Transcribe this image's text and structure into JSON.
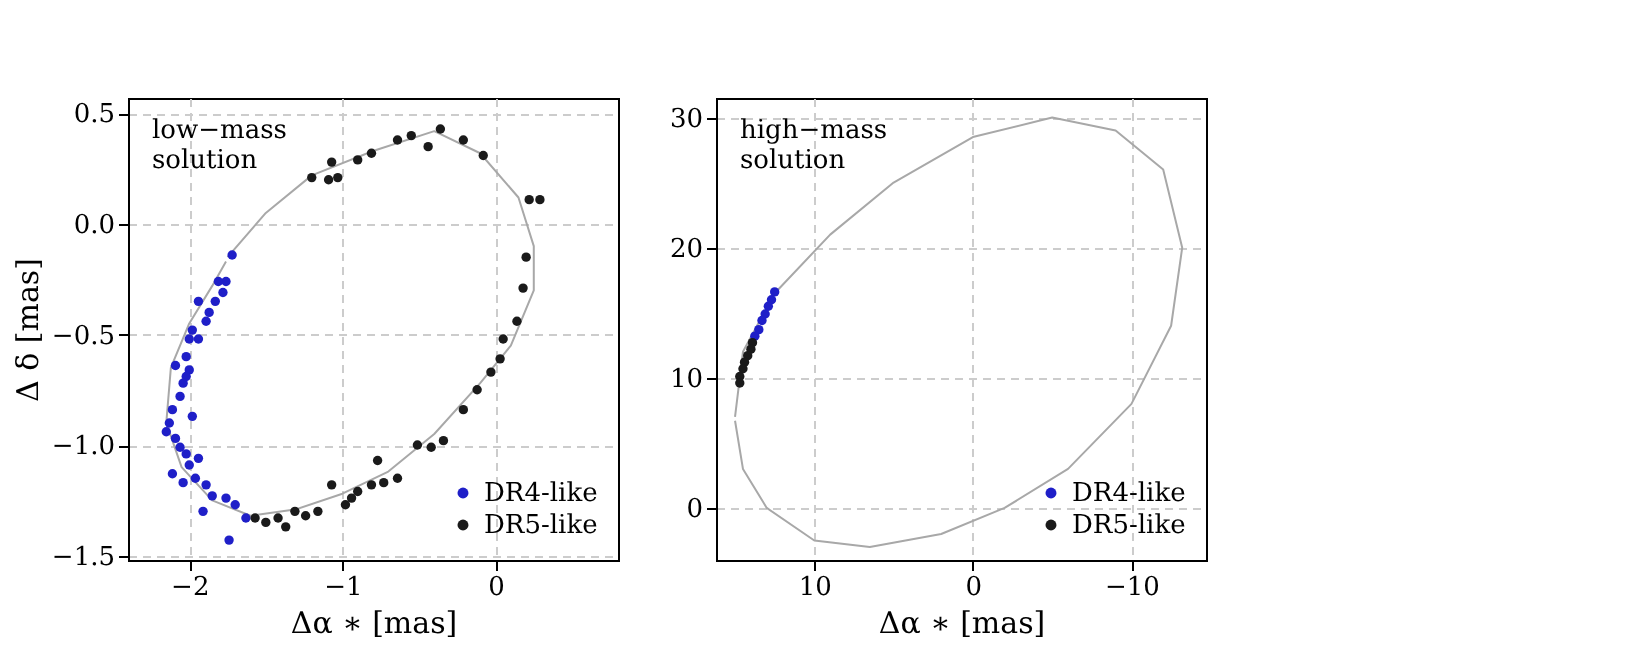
{
  "chart_data": [
    {
      "type": "scatter",
      "xlabel": "Δα ∗ [mas]",
      "ylabel": "Δ δ [mas]",
      "annotations": [
        "low−mass\nsolution"
      ],
      "grid": true,
      "legend": "bottom right",
      "marker": "circle",
      "xlim": [
        -2.4,
        0.8
      ],
      "ylim": [
        -1.52,
        0.57
      ],
      "xticks": [
        {
          "value": -2,
          "label": "−2"
        },
        {
          "value": -1,
          "label": "−1"
        },
        0
      ],
      "yticks": [
        {
          "value": -1.5,
          "label": "−1.5"
        },
        {
          "value": -1,
          "label": "−1.0"
        },
        {
          "value": -0.5,
          "label": "−0.5"
        },
        {
          "value": 0,
          "label": "0.0"
        },
        0.5
      ],
      "series": [
        {
          "name": "DR4-like",
          "type": "scatter",
          "color": "#1f1fc8",
          "x": [
            -1.72,
            -1.76,
            -1.78,
            -1.83,
            -1.87,
            -1.89,
            -1.98,
            -2.0,
            -1.94,
            -2.02,
            -2.0,
            -2.04,
            -2.06,
            -2.11,
            -2.13,
            -2.09,
            -2.06,
            -2.02,
            -2.0,
            -1.96,
            -1.89,
            -1.85,
            -1.76,
            -1.7,
            -1.63,
            -1.74,
            -1.91,
            -2.11,
            -2.15,
            -2.09,
            -2.02,
            -1.94,
            -1.81,
            -1.98,
            -1.94,
            -2.04
          ],
          "values": [
            -0.14,
            -0.26,
            -0.31,
            -0.35,
            -0.4,
            -0.44,
            -0.48,
            -0.52,
            -0.52,
            -0.6,
            -0.66,
            -0.72,
            -0.78,
            -0.84,
            -0.9,
            -0.97,
            -1.01,
            -1.04,
            -1.09,
            -1.15,
            -1.18,
            -1.23,
            -1.24,
            -1.27,
            -1.33,
            -1.43,
            -1.3,
            -1.13,
            -0.94,
            -0.64,
            -0.69,
            -0.35,
            -0.26,
            -0.87,
            -1.06,
            -1.17
          ]
        },
        {
          "name": "DR5-like",
          "type": "scatter",
          "color": "#1a1a1a",
          "x": [
            -1.57,
            -1.5,
            -1.42,
            -1.31,
            -1.24,
            -1.16,
            -1.07,
            -0.98,
            -0.9,
            -0.81,
            -0.73,
            -0.64,
            -0.51,
            -0.42,
            -0.34,
            -0.21,
            -0.12,
            -0.03,
            0.03,
            0.05,
            0.14,
            0.18,
            0.2,
            0.22,
            0.29,
            -0.08,
            -0.21,
            -0.36,
            -0.44,
            -0.55,
            -0.64,
            -0.81,
            -0.9,
            -1.07,
            -1.2,
            -1.09,
            -1.03,
            -1.37,
            -0.77,
            -0.94
          ],
          "values": [
            -1.33,
            -1.35,
            -1.33,
            -1.3,
            -1.32,
            -1.3,
            -1.18,
            -1.27,
            -1.21,
            -1.18,
            -1.17,
            -1.15,
            -1.0,
            -1.01,
            -0.98,
            -0.84,
            -0.75,
            -0.67,
            -0.61,
            -0.52,
            -0.44,
            -0.29,
            -0.15,
            0.11,
            0.11,
            0.31,
            0.38,
            0.43,
            0.35,
            0.4,
            0.38,
            0.32,
            0.29,
            0.28,
            0.21,
            0.2,
            0.21,
            -1.37,
            -1.07,
            -1.24
          ]
        },
        {
          "type": "line",
          "marker": "none",
          "color": "#a8a8a8",
          "x": [
            -1.75,
            -1.5,
            -1.2,
            -0.8,
            -0.4,
            -0.1,
            0.15,
            0.25,
            0.25,
            0.1,
            -0.1,
            -0.4,
            -0.7,
            -1.0,
            -1.3,
            -1.6,
            -1.85,
            -2.05,
            -2.15,
            -2.12,
            -2.0,
            -1.85,
            -1.76
          ],
          "values": [
            -0.15,
            0.05,
            0.22,
            0.33,
            0.42,
            0.32,
            0.12,
            -0.1,
            -0.3,
            -0.55,
            -0.72,
            -0.95,
            -1.12,
            -1.22,
            -1.29,
            -1.32,
            -1.25,
            -1.1,
            -0.9,
            -0.65,
            -0.45,
            -0.28,
            -0.17
          ]
        }
      ]
    },
    {
      "type": "scatter",
      "xlabel": "Δα ∗ [mas]",
      "annotations": [
        "high−mass\nsolution"
      ],
      "grid": true,
      "legend": "bottom right",
      "marker": "circle",
      "xlim": [
        16.2,
        -14.7
      ],
      "ylim": [
        -4,
        31.5
      ],
      "xticks": [
        10,
        0,
        {
          "value": -10,
          "label": "−10"
        }
      ],
      "yticks": [
        0,
        10,
        20,
        30
      ],
      "series": [
        {
          "name": "DR4-like",
          "type": "scatter",
          "color": "#1f1fc8",
          "x": [
            12.5,
            12.7,
            12.9,
            13.1,
            13.3,
            13.5,
            13.75
          ],
          "values": [
            16.6,
            16.0,
            15.5,
            14.9,
            14.4,
            13.7,
            13.2
          ]
        },
        {
          "name": "DR5-like",
          "type": "scatter",
          "color": "#1a1a1a",
          "x": [
            13.9,
            14.0,
            14.2,
            14.4,
            14.5,
            14.7,
            14.7
          ],
          "values": [
            12.7,
            12.2,
            11.7,
            11.2,
            10.7,
            10.1,
            9.6
          ]
        },
        {
          "type": "line",
          "marker": "none",
          "color": "#a8a8a8",
          "x": [
            15,
            14.5,
            12.5,
            9,
            5,
            0,
            -5,
            -9,
            -12,
            -13.2,
            -12.5,
            -10,
            -6,
            -2,
            2,
            6.5,
            10,
            13,
            14.5,
            15
          ],
          "values": [
            7,
            12,
            16.5,
            21,
            25,
            28.5,
            30,
            29,
            26,
            20,
            14,
            8,
            3,
            0,
            -2,
            -3,
            -2.5,
            0,
            3,
            6.7
          ]
        }
      ]
    }
  ]
}
